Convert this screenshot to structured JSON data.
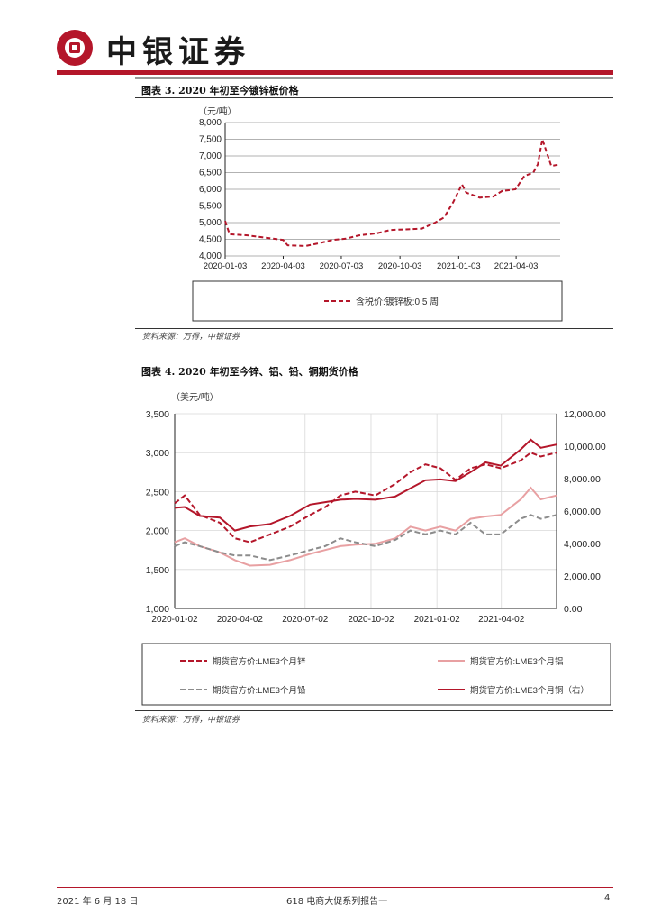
{
  "header": {
    "brand": "中银证券"
  },
  "figure3": {
    "caption": "图表 3. 2020 年初至今镀锌板价格",
    "source": "资料来源：万得，中银证券",
    "chart_data": {
      "type": "line",
      "unit": "（元/吨）",
      "ylim": [
        4000,
        8000
      ],
      "yticks": [
        "8,000",
        "7,500",
        "7,000",
        "6,500",
        "6,000",
        "5,500",
        "5,000",
        "4,500",
        "4,000"
      ],
      "ytick_values": [
        8000,
        7500,
        7000,
        6500,
        6000,
        5500,
        5000,
        4500,
        4000
      ],
      "xticks": [
        "2020-01-03",
        "2020-04-03",
        "2020-07-03",
        "2020-10-03",
        "2021-01-03",
        "2021-04-03"
      ],
      "xtick_values": [
        "2020-01-03",
        "2020-04-03",
        "2020-07-03",
        "2020-10-03",
        "2021-01-03",
        "2021-04-03"
      ],
      "xlim": [
        "2020-01-03",
        "2021-06-11"
      ],
      "grid": true,
      "legend_position": "bottom",
      "series": [
        {
          "name": "含税价:镀锌板:0.5 周",
          "color": "#b4162a",
          "style": "dashed",
          "points": [
            [
              "2020-01-03",
              5050
            ],
            [
              "2020-01-10",
              4650
            ],
            [
              "2020-02-07",
              4620
            ],
            [
              "2020-03-06",
              4550
            ],
            [
              "2020-04-03",
              4480
            ],
            [
              "2020-04-10",
              4320
            ],
            [
              "2020-05-08",
              4300
            ],
            [
              "2020-05-29",
              4380
            ],
            [
              "2020-06-19",
              4480
            ],
            [
              "2020-07-10",
              4520
            ],
            [
              "2020-07-31",
              4620
            ],
            [
              "2020-08-28",
              4680
            ],
            [
              "2020-09-18",
              4780
            ],
            [
              "2020-10-16",
              4800
            ],
            [
              "2020-11-06",
              4820
            ],
            [
              "2020-11-27",
              5000
            ],
            [
              "2020-12-11",
              5150
            ],
            [
              "2020-12-25",
              5600
            ],
            [
              "2021-01-08",
              6150
            ],
            [
              "2021-01-15",
              5900
            ],
            [
              "2021-02-05",
              5750
            ],
            [
              "2021-02-26",
              5780
            ],
            [
              "2021-03-12",
              5950
            ],
            [
              "2021-04-02",
              6000
            ],
            [
              "2021-04-16",
              6400
            ],
            [
              "2021-04-30",
              6500
            ],
            [
              "2021-05-07",
              6750
            ],
            [
              "2021-05-14",
              7500
            ],
            [
              "2021-05-28",
              6700
            ],
            [
              "2021-06-11",
              6750
            ]
          ]
        }
      ]
    }
  },
  "figure4": {
    "caption": "图表 4. 2020 年初至今锌、铝、铅、铜期货价格",
    "source": "资料来源：万得，中银证券",
    "chart_data": {
      "type": "line",
      "unit_left": "（美元/吨）",
      "ylim_left": [
        1000,
        3500
      ],
      "yticks_left": [
        "3,500",
        "3,000",
        "2,500",
        "2,000",
        "1,500",
        "1,000"
      ],
      "ytick_values_left": [
        3500,
        3000,
        2500,
        2000,
        1500,
        1000
      ],
      "ylim_right": [
        0,
        12000
      ],
      "yticks_right": [
        "12,000.00",
        "10,000.00",
        "8,000.00",
        "6,000.00",
        "4,000.00",
        "2,000.00",
        "0.00"
      ],
      "ytick_values_right": [
        12000,
        10000,
        8000,
        6000,
        4000,
        2000,
        0
      ],
      "xticks": [
        "2020-01-02",
        "2020-04-02",
        "2020-07-02",
        "2020-10-02",
        "2021-01-02",
        "2021-04-02"
      ],
      "xtick_values": [
        "2020-01-02",
        "2020-04-02",
        "2020-07-02",
        "2020-10-02",
        "2021-01-02",
        "2021-04-02"
      ],
      "xlim": [
        "2020-01-02",
        "2021-06-18"
      ],
      "grid": true,
      "legend_position": "bottom",
      "series": [
        {
          "name": "期货官方价:LME3个月锌",
          "color": "#b4162a",
          "style": "dashed",
          "axis": "left",
          "points": [
            [
              "2020-01-02",
              2350
            ],
            [
              "2020-01-16",
              2450
            ],
            [
              "2020-02-06",
              2200
            ],
            [
              "2020-03-05",
              2100
            ],
            [
              "2020-03-26",
              1900
            ],
            [
              "2020-04-16",
              1850
            ],
            [
              "2020-05-14",
              1950
            ],
            [
              "2020-06-11",
              2050
            ],
            [
              "2020-07-09",
              2200
            ],
            [
              "2020-07-30",
              2300
            ],
            [
              "2020-08-20",
              2450
            ],
            [
              "2020-09-10",
              2500
            ],
            [
              "2020-10-08",
              2450
            ],
            [
              "2020-11-05",
              2600
            ],
            [
              "2020-11-26",
              2750
            ],
            [
              "2020-12-17",
              2850
            ],
            [
              "2021-01-07",
              2800
            ],
            [
              "2021-01-28",
              2650
            ],
            [
              "2021-02-18",
              2800
            ],
            [
              "2021-03-11",
              2850
            ],
            [
              "2021-04-01",
              2800
            ],
            [
              "2021-04-29",
              2900
            ],
            [
              "2021-05-13",
              3000
            ],
            [
              "2021-05-27",
              2950
            ],
            [
              "2021-06-18",
              3000
            ]
          ]
        },
        {
          "name": "期货官方价:LME3个月铝",
          "color": "#e8a0a2",
          "style": "solid",
          "axis": "left",
          "points": [
            [
              "2020-01-02",
              1850
            ],
            [
              "2020-01-16",
              1900
            ],
            [
              "2020-02-06",
              1800
            ],
            [
              "2020-03-05",
              1720
            ],
            [
              "2020-03-26",
              1620
            ],
            [
              "2020-04-16",
              1550
            ],
            [
              "2020-05-14",
              1560
            ],
            [
              "2020-06-11",
              1620
            ],
            [
              "2020-07-09",
              1700
            ],
            [
              "2020-07-30",
              1750
            ],
            [
              "2020-08-20",
              1800
            ],
            [
              "2020-09-10",
              1820
            ],
            [
              "2020-10-08",
              1830
            ],
            [
              "2020-11-05",
              1900
            ],
            [
              "2020-11-26",
              2050
            ],
            [
              "2020-12-17",
              2000
            ],
            [
              "2021-01-07",
              2050
            ],
            [
              "2021-01-28",
              2000
            ],
            [
              "2021-02-18",
              2150
            ],
            [
              "2021-03-11",
              2180
            ],
            [
              "2021-04-01",
              2200
            ],
            [
              "2021-04-29",
              2400
            ],
            [
              "2021-05-13",
              2550
            ],
            [
              "2021-05-27",
              2400
            ],
            [
              "2021-06-18",
              2450
            ]
          ]
        },
        {
          "name": "期货官方价:LME3个月铅",
          "color": "#8c8c8c",
          "style": "dashed",
          "axis": "left",
          "points": [
            [
              "2020-01-02",
              1800
            ],
            [
              "2020-01-16",
              1850
            ],
            [
              "2020-02-06",
              1800
            ],
            [
              "2020-03-05",
              1720
            ],
            [
              "2020-03-26",
              1680
            ],
            [
              "2020-04-16",
              1680
            ],
            [
              "2020-05-14",
              1620
            ],
            [
              "2020-06-11",
              1680
            ],
            [
              "2020-07-09",
              1750
            ],
            [
              "2020-07-30",
              1800
            ],
            [
              "2020-08-20",
              1900
            ],
            [
              "2020-09-10",
              1850
            ],
            [
              "2020-10-08",
              1800
            ],
            [
              "2020-11-05",
              1880
            ],
            [
              "2020-11-26",
              2000
            ],
            [
              "2020-12-17",
              1950
            ],
            [
              "2021-01-07",
              2000
            ],
            [
              "2021-01-28",
              1950
            ],
            [
              "2021-02-18",
              2100
            ],
            [
              "2021-03-11",
              1950
            ],
            [
              "2021-04-01",
              1950
            ],
            [
              "2021-04-29",
              2150
            ],
            [
              "2021-05-13",
              2200
            ],
            [
              "2021-05-27",
              2150
            ],
            [
              "2021-06-18",
              2200
            ]
          ]
        },
        {
          "name": "期货官方价:LME3个月铜（右）",
          "color": "#b4162a",
          "style": "solid",
          "axis": "right",
          "points": [
            [
              "2020-01-02",
              6200
            ],
            [
              "2020-01-16",
              6250
            ],
            [
              "2020-02-06",
              5700
            ],
            [
              "2020-03-05",
              5600
            ],
            [
              "2020-03-26",
              4800
            ],
            [
              "2020-04-16",
              5050
            ],
            [
              "2020-05-14",
              5200
            ],
            [
              "2020-06-11",
              5700
            ],
            [
              "2020-07-09",
              6400
            ],
            [
              "2020-07-30",
              6550
            ],
            [
              "2020-08-20",
              6700
            ],
            [
              "2020-09-10",
              6750
            ],
            [
              "2020-10-08",
              6700
            ],
            [
              "2020-11-05",
              6900
            ],
            [
              "2020-11-26",
              7400
            ],
            [
              "2020-12-17",
              7900
            ],
            [
              "2021-01-07",
              7950
            ],
            [
              "2021-01-28",
              7850
            ],
            [
              "2021-02-18",
              8400
            ],
            [
              "2021-03-11",
              9000
            ],
            [
              "2021-04-01",
              8800
            ],
            [
              "2021-04-29",
              9800
            ],
            [
              "2021-05-13",
              10400
            ],
            [
              "2021-05-27",
              9900
            ],
            [
              "2021-06-18",
              10100
            ]
          ]
        }
      ]
    }
  },
  "footer": {
    "date": "2021 年 6 月 18 日",
    "title": "618 电商大促系列报告一",
    "page": "4"
  }
}
